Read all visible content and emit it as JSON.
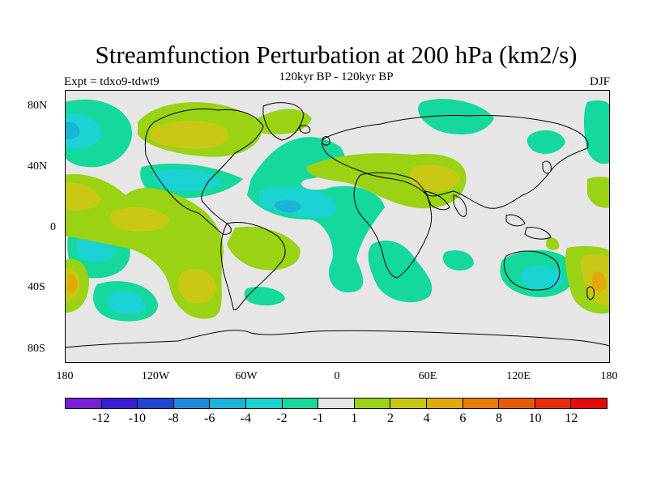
{
  "title": "Streamfunction Perturbation at 200 hPa (km2/s)",
  "subtitle": "120kyr BP - 120kyr BP",
  "experiment": "Expt = tdxo9-tdwt9",
  "season": "DJF",
  "map": {
    "projection": "cylindrical-equidistant",
    "lon_range": [
      -180,
      180
    ],
    "lat_range": [
      -90,
      90
    ],
    "background_color": "#e6e6e6",
    "coastline_color": "#000000",
    "lat_ticks": [
      "80N",
      "40N",
      "0",
      "40S",
      "80S"
    ],
    "lon_ticks": [
      "180",
      "120W",
      "60W",
      "0",
      "60E",
      "120E",
      "180"
    ]
  },
  "colorbar": {
    "colors": [
      "#7a1ed8",
      "#3a1ed6",
      "#1e46d2",
      "#1e8cd8",
      "#1ab4d8",
      "#1ad2d2",
      "#14d89c",
      "#e6e6e6",
      "#9ad214",
      "#c8c814",
      "#e0aa0a",
      "#e67d05",
      "#e65a05",
      "#e62d0a",
      "#e60a0a"
    ],
    "labels": [
      "-12",
      "-10",
      "-8",
      "-6",
      "-4",
      "-2",
      "-1",
      "1",
      "2",
      "4",
      "6",
      "8",
      "10",
      "12"
    ]
  }
}
